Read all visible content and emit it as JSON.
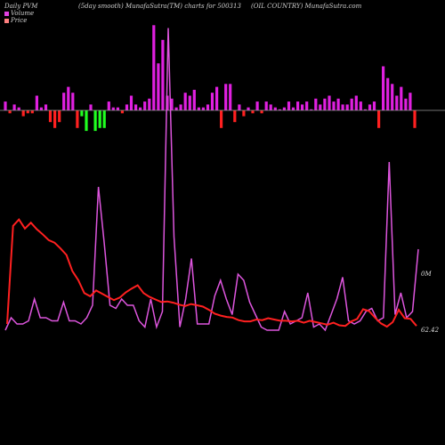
{
  "header": {
    "left": "Daily PVM",
    "center_left": "(5day smooth) MunafaSutra(TM) charts for 500313",
    "center_right": "(OIL COUNTRY) MunafaSutra.com"
  },
  "legend": {
    "volume_label": "Volume",
    "price_label": "Price",
    "volume_color": "#e040e0",
    "price_color": "#ff8080"
  },
  "labels": {
    "volume_end": "0M",
    "price_end": "62.42"
  },
  "chart_data": {
    "type": "bar",
    "title": "",
    "colors": {
      "positive": "#e020e0",
      "negative": "#ff2020",
      "strong_negative": "#20ff20",
      "volume_line": "#dd55dd",
      "price_line": "#ff2020",
      "baseline": "#999999"
    },
    "pvm_bars": [
      3,
      -1,
      2,
      1,
      -2,
      -1,
      -1,
      5,
      1,
      2,
      -4,
      -6,
      -4,
      6,
      8,
      6,
      -6,
      -2,
      -7,
      2,
      -7,
      -6,
      -6,
      3,
      1,
      1,
      -1,
      2,
      5,
      2,
      1,
      3,
      4,
      29,
      16,
      24,
      5,
      4,
      1,
      2,
      6,
      5,
      7,
      1,
      1,
      2,
      6,
      8,
      -6,
      9,
      9,
      -4,
      2,
      -2,
      1,
      -1,
      3,
      -1,
      3,
      2,
      1,
      0,
      1,
      3,
      1,
      3,
      2,
      3,
      0,
      4,
      2,
      4,
      5,
      3,
      4,
      2,
      2,
      4,
      5,
      3,
      0,
      2,
      3,
      -6,
      15,
      11,
      9,
      5,
      8,
      4,
      6,
      -6
    ],
    "bar_signs": [
      "p",
      "g",
      "p",
      "p",
      "n",
      "p",
      "n",
      "p",
      "p",
      "p",
      "n",
      "n",
      "n",
      "p",
      "p",
      "p",
      "n",
      "g",
      "n",
      "g",
      "g",
      "n",
      "g",
      "p",
      "p",
      "p",
      "n",
      "p",
      "n",
      "p",
      "p",
      "p",
      "p",
      "p",
      "p",
      "p",
      "p",
      "p",
      "g",
      "p",
      "n",
      "p",
      "n",
      "p",
      "n",
      "p",
      "n",
      "p",
      "n",
      "p",
      "p",
      "n",
      "p",
      "n",
      "p",
      "p",
      "n",
      "p",
      "n",
      "p",
      "n",
      "p",
      "p",
      "g",
      "p",
      "n",
      "p",
      "p",
      "n",
      "p",
      "p",
      "g",
      "n",
      "p",
      "n",
      "p",
      "n",
      "p",
      "g",
      "p",
      "g",
      "g",
      "p",
      "n",
      "p",
      "g",
      "p",
      "p",
      "g",
      "n",
      "p",
      "n"
    ],
    "volume": [
      1,
      3,
      1,
      2,
      8,
      1,
      1,
      1,
      4,
      1,
      5,
      7,
      8,
      15,
      22,
      18,
      8,
      9,
      5,
      5,
      7,
      3,
      8,
      10,
      12,
      1,
      8,
      99,
      5,
      2,
      3,
      22,
      8,
      6,
      10,
      12,
      13,
      13,
      3,
      8,
      5,
      6,
      12,
      14,
      18,
      19,
      3,
      3,
      2,
      6,
      2,
      2,
      3,
      6,
      5,
      4,
      13,
      4,
      4,
      3,
      5,
      3,
      7,
      2,
      6,
      7,
      4,
      4,
      7,
      6,
      56,
      10,
      5,
      5,
      5,
      3,
      0
    ],
    "volume_raw": [
      2,
      6,
      4,
      4,
      5,
      12,
      6,
      6,
      5,
      5,
      11,
      5,
      5,
      4,
      6,
      10,
      48,
      30,
      10,
      9,
      12,
      10,
      10,
      5,
      3,
      12,
      3,
      8,
      99,
      32,
      3,
      12,
      25,
      4,
      4,
      4,
      13,
      18,
      12,
      7,
      20,
      18,
      11,
      7,
      3,
      2,
      2,
      2,
      8,
      4,
      5,
      6,
      14,
      3,
      4,
      2,
      7,
      12,
      19,
      5,
      4,
      5,
      8,
      9,
      5,
      6,
      56,
      7,
      14,
      6,
      8,
      28
    ],
    "price": [
      58.5,
      74,
      74.4,
      73.2,
      73.6,
      72.8,
      72.0,
      71.1,
      70.8,
      69.2,
      67.8,
      66.5,
      64.8,
      64.0,
      63.9,
      63.8,
      63.5,
      63.5,
      63.6,
      63.3,
      63.6,
      63.2,
      62.8,
      62.5,
      62.6,
      62.4,
      62.3,
      61.9,
      62.2,
      62.4,
      62.1,
      61.9,
      62.0,
      62.2,
      62.4,
      62.0,
      61.8,
      61.9,
      61.8,
      61.9,
      62.42
    ],
    "price_series": [
      58.2,
      73.4,
      74.4,
      73.0,
      73.9,
      72.9,
      72.1,
      71.2,
      70.8,
      69.9,
      68.9,
      66.4,
      65.0,
      63.0,
      62.5,
      63.4,
      62.9,
      62.4,
      61.9,
      62.3,
      63.1,
      63.7,
      64.2,
      63.0,
      62.4,
      62.0,
      61.6,
      61.7,
      61.5,
      61.2,
      61.0,
      61.3,
      61.1,
      60.9,
      60.4,
      59.8,
      59.5,
      59.3,
      59.2,
      58.8,
      58.6,
      58.6,
      58.9,
      58.8,
      59.1,
      58.9,
      58.7,
      58.7,
      58.6,
      58.7,
      58.4,
      58.7,
      58.5,
      58.3,
      58.1,
      58.4,
      58.0,
      57.9,
      58.6,
      59.0,
      60.5,
      60.2,
      59.2,
      58.3,
      57.8,
      58.5,
      60.4,
      59.1,
      59.0,
      57.9
    ]
  }
}
